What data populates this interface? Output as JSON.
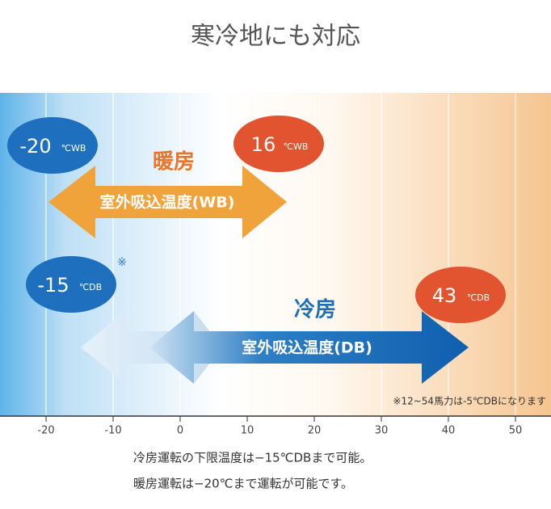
{
  "title": "寒冷地にも対応",
  "heating": {
    "label": "暖房",
    "range_label": "室外吸込温度(WB)",
    "low": {
      "value": "-20",
      "unit": "℃WB"
    },
    "high": {
      "value": "16",
      "unit": "℃WB"
    }
  },
  "cooling": {
    "label": "冷房",
    "range_label": "室外吸込温度(DB)",
    "low": {
      "value": "-15",
      "unit": "℃DB",
      "mark": "※"
    },
    "high": {
      "value": "43",
      "unit": "℃DB"
    },
    "note": "※12~54馬力は-5℃DBになります"
  },
  "axis": {
    "ticks": [
      -20,
      -10,
      0,
      10,
      20,
      30,
      40,
      50
    ]
  },
  "footnotes": [
    "冷房運転の下限温度は−15℃DBまで可能。",
    "暖房運転は−20℃まで運転が可能です。"
  ]
}
